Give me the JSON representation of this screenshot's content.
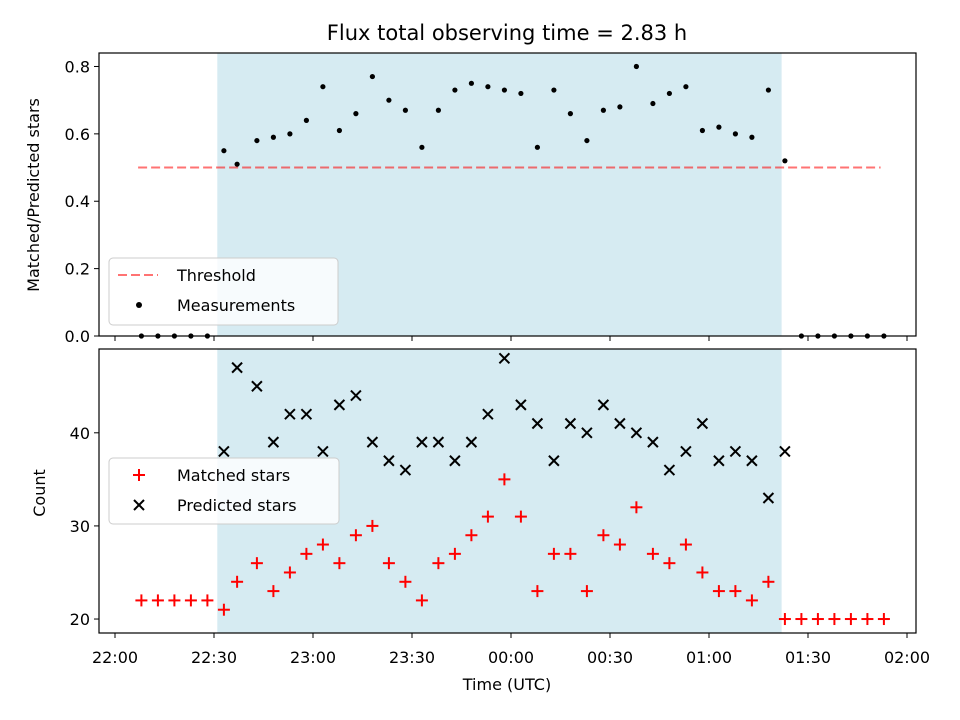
{
  "chart_data": [
    {
      "type": "scatter",
      "title": "Flux total observing time = 2.83 h",
      "ylabel": "Matched/Predicted stars",
      "xlabel": "",
      "ylim": [
        0,
        0.84
      ],
      "yticks": [
        "0.0",
        "0.2",
        "0.4",
        "0.6",
        "0.8"
      ],
      "grid": false,
      "legend_placement": "lower-left",
      "shaded_interval": [
        "22:31",
        "01:22"
      ],
      "shade_color": "#add8e6",
      "threshold": {
        "name": "Threshold",
        "value": 0.5,
        "x_range": [
          "22:07",
          "01:52"
        ],
        "color": "#ff0000",
        "style": "dashed"
      },
      "series": [
        {
          "name": "Measurements",
          "color": "#000000",
          "marker": "dot",
          "x": [
            "22:08",
            "22:13",
            "22:18",
            "22:23",
            "22:28",
            "22:33",
            "22:37",
            "22:43",
            "22:48",
            "22:53",
            "22:58",
            "23:03",
            "23:08",
            "23:13",
            "23:18",
            "23:23",
            "23:28",
            "23:33",
            "23:38",
            "23:43",
            "23:48",
            "23:53",
            "23:58",
            "00:03",
            "00:08",
            "00:13",
            "00:18",
            "00:23",
            "00:28",
            "00:33",
            "00:38",
            "00:43",
            "00:48",
            "00:53",
            "00:58",
            "01:03",
            "01:08",
            "01:13",
            "01:18",
            "01:23",
            "01:28",
            "01:33",
            "01:38",
            "01:43",
            "01:48",
            "01:53"
          ],
          "y": [
            0,
            0,
            0,
            0,
            0,
            0.55,
            0.51,
            0.58,
            0.59,
            0.6,
            0.64,
            0.74,
            0.61,
            0.66,
            0.77,
            0.7,
            0.67,
            0.56,
            0.67,
            0.73,
            0.75,
            0.74,
            0.73,
            0.72,
            0.56,
            0.73,
            0.66,
            0.58,
            0.67,
            0.68,
            0.8,
            0.69,
            0.72,
            0.74,
            0.61,
            0.62,
            0.6,
            0.59,
            0.73,
            0.52,
            0,
            0,
            0,
            0,
            0,
            0
          ]
        }
      ]
    },
    {
      "type": "scatter",
      "title": "",
      "xlabel": "Time (UTC)",
      "ylabel": "Count",
      "ylim": [
        18.5,
        49
      ],
      "yticks": [
        "20",
        "30",
        "40"
      ],
      "xticks": [
        "22:00",
        "22:30",
        "23:00",
        "23:30",
        "00:00",
        "00:30",
        "01:00",
        "01:30",
        "02:00"
      ],
      "grid": false,
      "legend_placement": "center-left",
      "shaded_interval": [
        "22:31",
        "01:22"
      ],
      "shade_color": "#add8e6",
      "series": [
        {
          "name": "Matched stars",
          "color": "#ff0000",
          "marker": "plus",
          "x": [
            "22:08",
            "22:13",
            "22:18",
            "22:23",
            "22:28",
            "22:33",
            "22:37",
            "22:43",
            "22:48",
            "22:53",
            "22:58",
            "23:03",
            "23:08",
            "23:13",
            "23:18",
            "23:23",
            "23:28",
            "23:33",
            "23:38",
            "23:43",
            "23:48",
            "23:53",
            "23:58",
            "00:03",
            "00:08",
            "00:13",
            "00:18",
            "00:23",
            "00:28",
            "00:33",
            "00:38",
            "00:43",
            "00:48",
            "00:53",
            "00:58",
            "01:03",
            "01:08",
            "01:13",
            "01:18",
            "01:23",
            "01:28",
            "01:33",
            "01:38",
            "01:43",
            "01:48",
            "01:53"
          ],
          "y": [
            22,
            22,
            22,
            22,
            22,
            21,
            24,
            26,
            23,
            25,
            27,
            28,
            26,
            29,
            30,
            26,
            24,
            22,
            26,
            27,
            29,
            31,
            35,
            31,
            23,
            27,
            27,
            23,
            29,
            28,
            32,
            27,
            26,
            28,
            25,
            23,
            23,
            22,
            24,
            20,
            20,
            20,
            20,
            20,
            20,
            20
          ]
        },
        {
          "name": "Predicted stars",
          "color": "#000000",
          "marker": "x",
          "x": [
            "22:33",
            "22:37",
            "22:43",
            "22:48",
            "22:53",
            "22:58",
            "23:03",
            "23:08",
            "23:13",
            "23:18",
            "23:23",
            "23:28",
            "23:33",
            "23:38",
            "23:43",
            "23:48",
            "23:53",
            "23:58",
            "00:03",
            "00:08",
            "00:13",
            "00:18",
            "00:23",
            "00:28",
            "00:33",
            "00:38",
            "00:43",
            "00:48",
            "00:53",
            "00:58",
            "01:03",
            "01:08",
            "01:13",
            "01:18",
            "01:23"
          ],
          "y": [
            38,
            47,
            45,
            39,
            42,
            42,
            38,
            43,
            44,
            39,
            37,
            36,
            39,
            39,
            37,
            39,
            42,
            48,
            43,
            41,
            37,
            41,
            40,
            43,
            41,
            40,
            39,
            36,
            38,
            41,
            37,
            38,
            37,
            33,
            38
          ]
        }
      ]
    }
  ]
}
